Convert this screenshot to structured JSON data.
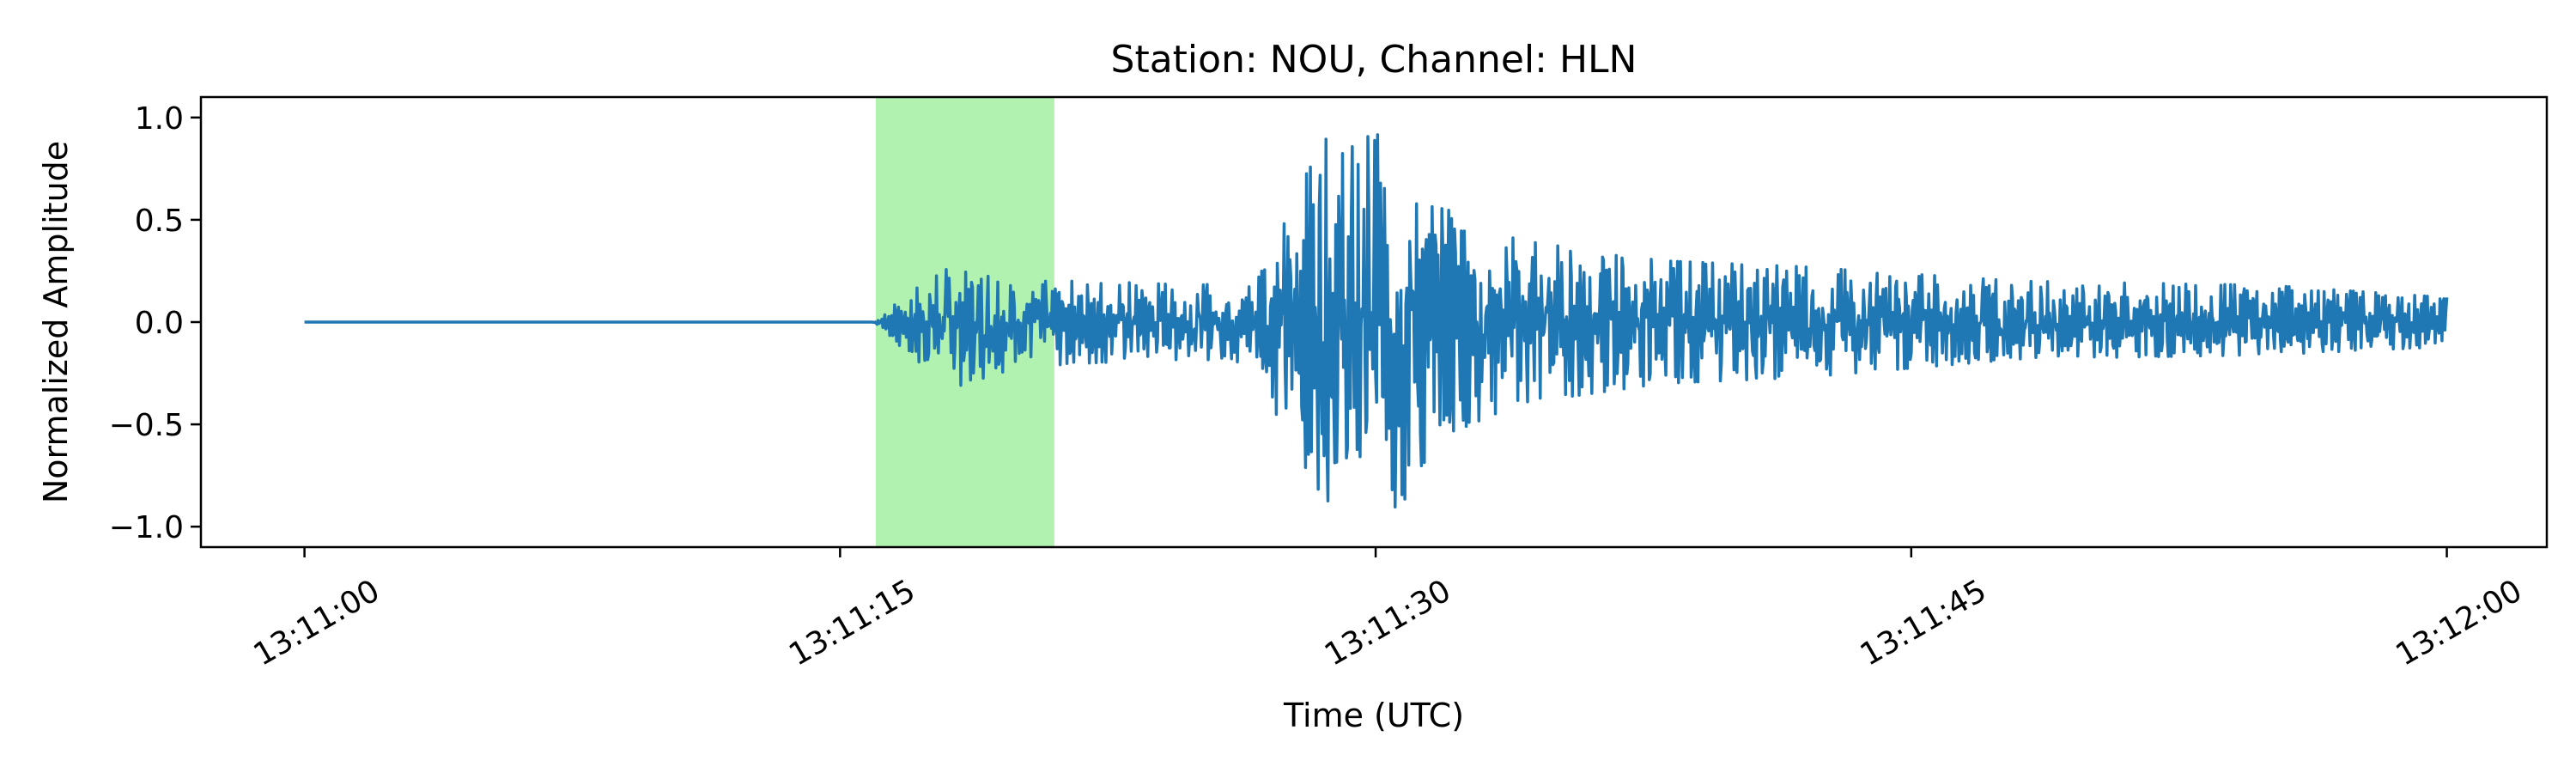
{
  "chart_data": {
    "type": "line",
    "title": "Station: NOU, Channel: HLN",
    "xlabel": "Time (UTC)",
    "ylabel": "Normalized Amplitude",
    "xlim_seconds": [
      -2.9,
      62.8
    ],
    "ylim": [
      -1.1,
      1.1
    ],
    "grid": false,
    "legend": "none",
    "x_ticks": [
      {
        "value": 0,
        "label": "13:11:00"
      },
      {
        "value": 15,
        "label": "13:11:15"
      },
      {
        "value": 30,
        "label": "13:11:30"
      },
      {
        "value": 45,
        "label": "13:11:45"
      },
      {
        "value": 60,
        "label": "13:12:00"
      }
    ],
    "y_ticks": [
      {
        "value": 1.0,
        "label": "1.0"
      },
      {
        "value": 0.5,
        "label": "0.5"
      },
      {
        "value": 0.0,
        "label": "0.0"
      },
      {
        "value": -0.5,
        "label": "−0.5"
      },
      {
        "value": -1.0,
        "label": "−1.0"
      }
    ],
    "highlight_window": {
      "x_start": 16.0,
      "x_end": 21.0,
      "color": "#b2f2b0"
    },
    "series": [
      {
        "color": "#1f77b4",
        "x_start": 0,
        "x_end": 60,
        "envelope": [
          {
            "x": 0,
            "lo": 0.0,
            "hi": 0.0
          },
          {
            "x": 15.9,
            "lo": 0.0,
            "hi": 0.0
          },
          {
            "x": 16.5,
            "lo": -0.08,
            "hi": 0.08
          },
          {
            "x": 17.0,
            "lo": -0.2,
            "hi": 0.15
          },
          {
            "x": 18.0,
            "lo": -0.33,
            "hi": 0.26
          },
          {
            "x": 20.0,
            "lo": -0.22,
            "hi": 0.2
          },
          {
            "x": 22.0,
            "lo": -0.2,
            "hi": 0.2
          },
          {
            "x": 25.0,
            "lo": -0.18,
            "hi": 0.18
          },
          {
            "x": 26.5,
            "lo": -0.2,
            "hi": 0.2
          },
          {
            "x": 27.5,
            "lo": -0.55,
            "hi": 0.5
          },
          {
            "x": 28.5,
            "lo": -0.85,
            "hi": 0.9
          },
          {
            "x": 29.5,
            "lo": -1.0,
            "hi": 0.85
          },
          {
            "x": 30.0,
            "lo": -0.8,
            "hi": 1.0
          },
          {
            "x": 30.5,
            "lo": -0.95,
            "hi": 0.6
          },
          {
            "x": 32.0,
            "lo": -0.55,
            "hi": 0.55
          },
          {
            "x": 34.0,
            "lo": -0.4,
            "hi": 0.4
          },
          {
            "x": 38.0,
            "lo": -0.3,
            "hi": 0.3
          },
          {
            "x": 42.0,
            "lo": -0.27,
            "hi": 0.27
          },
          {
            "x": 48.0,
            "lo": -0.18,
            "hi": 0.2
          },
          {
            "x": 55.0,
            "lo": -0.16,
            "hi": 0.18
          },
          {
            "x": 60.0,
            "lo": -0.12,
            "hi": 0.12
          }
        ]
      }
    ]
  }
}
